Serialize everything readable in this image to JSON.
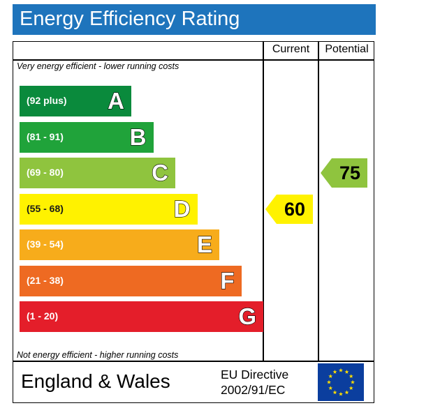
{
  "title": "Energy Efficiency Rating",
  "columns": {
    "current": "Current",
    "potential": "Potential"
  },
  "notes": {
    "top": "Very energy efficient - lower running costs",
    "bottom": "Not energy efficient - higher running costs"
  },
  "chart_data": {
    "type": "table",
    "bands": [
      {
        "letter": "A",
        "range": "(92 plus)",
        "color": "#0a8a3c"
      },
      {
        "letter": "B",
        "range": "(81 - 91)",
        "color": "#20a33a"
      },
      {
        "letter": "C",
        "range": "(69 - 80)",
        "color": "#8fc43e"
      },
      {
        "letter": "D",
        "range": "(55 - 68)",
        "color": "#fff200"
      },
      {
        "letter": "E",
        "range": "(39 - 54)",
        "color": "#f7ac1b"
      },
      {
        "letter": "F",
        "range": "(21 - 38)",
        "color": "#ee6a22"
      },
      {
        "letter": "G",
        "range": "(1 - 20)",
        "color": "#e41e2a"
      }
    ],
    "current": {
      "value": 60,
      "band": "D",
      "color": "#fff200"
    },
    "potential": {
      "value": 75,
      "band": "C",
      "color": "#8fc43e"
    }
  },
  "footer": {
    "region": "England & Wales",
    "directive_line1": "EU Directive",
    "directive_line2": "2002/91/EC"
  }
}
